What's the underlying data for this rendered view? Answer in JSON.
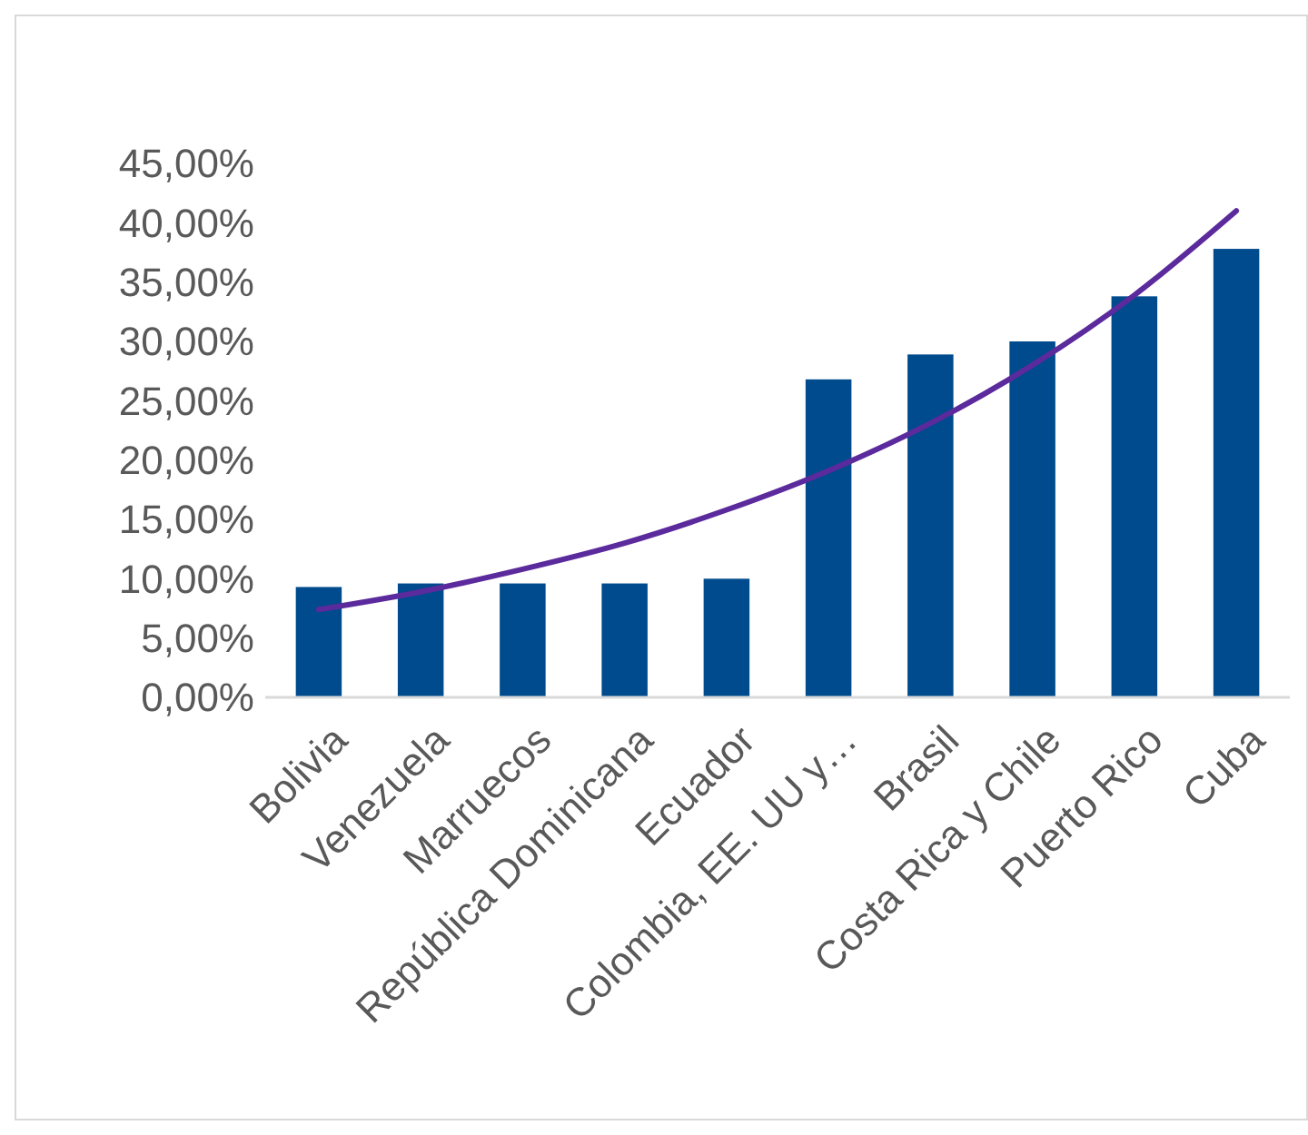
{
  "chart_data": {
    "type": "bar",
    "categories": [
      "Bolivia",
      "Venezuela",
      "Marruecos",
      "República Dominicana",
      "Ecuador",
      "Colombia, EE. UU y…",
      "Brasil",
      "Costa Rica y Chile",
      "Puerto Rico",
      "Cuba"
    ],
    "series": [
      {
        "color": "#004b8d",
        "values": [
          9.3,
          9.6,
          9.6,
          9.6,
          10.0,
          26.8,
          28.9,
          30.0,
          33.8,
          37.8
        ]
      },
      {
        "type": "line",
        "color": "#5b2a9c",
        "values": [
          7.4,
          8.9,
          10.8,
          13.0,
          15.8,
          19.1,
          23.1,
          28.0,
          33.9,
          41.0
        ]
      }
    ],
    "ylim": [
      0,
      45
    ],
    "yticks": [
      {
        "value": 0,
        "label": "0,00%"
      },
      {
        "value": 5,
        "label": "5,00%"
      },
      {
        "value": 10,
        "label": "10,00%"
      },
      {
        "value": 15,
        "label": "15,00%"
      },
      {
        "value": 20,
        "label": "20,00%"
      },
      {
        "value": 25,
        "label": "25,00%"
      },
      {
        "value": 30,
        "label": "30,00%"
      },
      {
        "value": 35,
        "label": "35,00%"
      },
      {
        "value": 40,
        "label": "40,00%"
      },
      {
        "value": 45,
        "label": "45,00%"
      }
    ],
    "grid": false,
    "marker": "none",
    "line_style": "solid"
  }
}
